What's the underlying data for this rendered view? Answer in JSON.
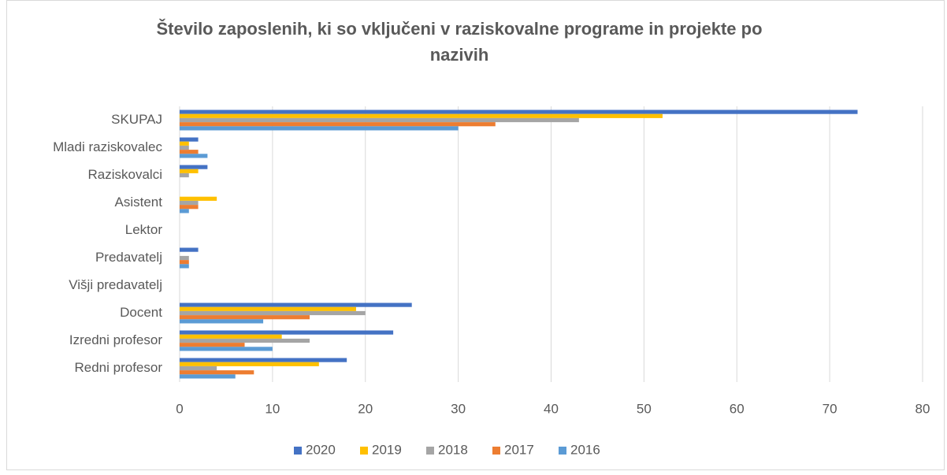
{
  "chart_data": {
    "type": "hbar",
    "title_lines": [
      "Število zaposlenih, ki so vključeni v raziskovalne programe in projekte po",
      "nazivih"
    ],
    "categories": [
      "SKUPAJ",
      "Mladi raziskovalec",
      "Raziskovalci",
      "Asistent",
      "Lektor",
      "Predavatelj",
      "Višji predavatelj",
      "Docent",
      "Izredni profesor",
      "Redni profesor"
    ],
    "series": [
      {
        "name": "2020",
        "color": "#4472c4",
        "values": [
          73,
          2,
          3,
          0,
          0,
          2,
          0,
          25,
          23,
          18
        ]
      },
      {
        "name": "2019",
        "color": "#ffc000",
        "values": [
          52,
          1,
          2,
          4,
          0,
          0,
          0,
          19,
          11,
          15
        ]
      },
      {
        "name": "2018",
        "color": "#a5a5a5",
        "values": [
          43,
          1,
          1,
          2,
          0,
          1,
          0,
          20,
          14,
          4
        ]
      },
      {
        "name": "2017",
        "color": "#ed7d31",
        "values": [
          34,
          2,
          0,
          2,
          0,
          1,
          0,
          14,
          7,
          8
        ]
      },
      {
        "name": "2016",
        "color": "#5b9bd5",
        "values": [
          30,
          3,
          0,
          1,
          0,
          1,
          0,
          9,
          10,
          6
        ]
      }
    ],
    "xlim": [
      0,
      80
    ],
    "xticks": [
      0,
      10,
      20,
      30,
      40,
      50,
      60,
      70,
      80
    ],
    "grid": true,
    "legend": "bottom"
  }
}
